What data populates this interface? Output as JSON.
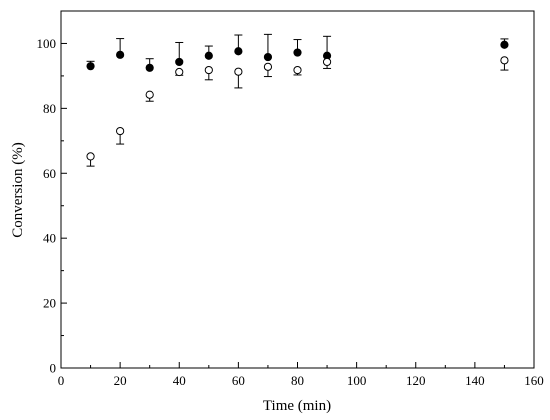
{
  "chart_data": {
    "type": "scatter",
    "title": "",
    "xlabel": "Time (min)",
    "ylabel": "Conversion (%)",
    "xlim": [
      0,
      160
    ],
    "ylim": [
      0,
      110
    ],
    "xticks": [
      0,
      20,
      40,
      60,
      80,
      100,
      120,
      140,
      160
    ],
    "yticks": [
      0,
      20,
      40,
      60,
      80,
      100
    ],
    "grid": false,
    "series": [
      {
        "marker": "filled-circle",
        "color": "#000000",
        "x": [
          10,
          20,
          30,
          40,
          50,
          60,
          70,
          80,
          90,
          150
        ],
        "y": [
          93.0,
          96.5,
          92.5,
          94.3,
          96.2,
          97.6,
          95.8,
          97.2,
          96.2,
          99.6
        ],
        "error": [
          1.5,
          5.0,
          2.8,
          6.0,
          3.0,
          5.0,
          7.0,
          4.0,
          6.0,
          1.8
        ]
      },
      {
        "marker": "open-circle",
        "color": "#000000",
        "x": [
          10,
          20,
          30,
          40,
          50,
          60,
          70,
          80,
          90,
          150
        ],
        "y": [
          65.2,
          73.0,
          84.2,
          91.2,
          91.8,
          91.3,
          92.8,
          91.8,
          94.3,
          94.8
        ],
        "error": [
          3.0,
          4.0,
          2.0,
          1.0,
          3.0,
          5.0,
          3.0,
          1.5,
          2.0,
          3.0
        ]
      }
    ]
  }
}
